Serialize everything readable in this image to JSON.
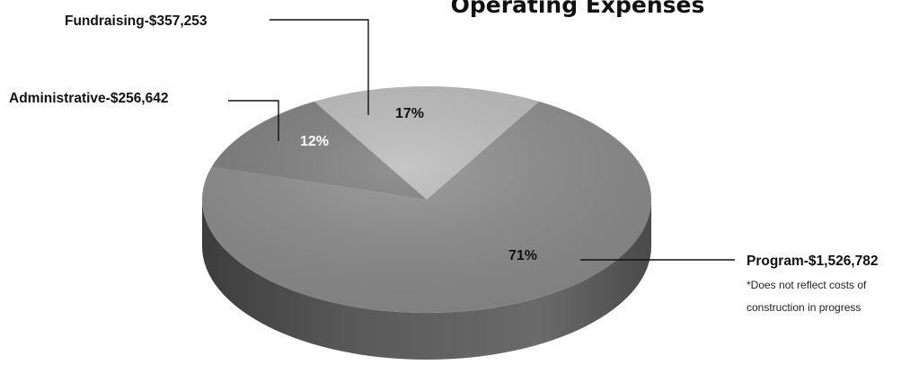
{
  "chart_data": {
    "type": "pie",
    "title": "Operating Expenses",
    "slices": [
      {
        "category": "Program",
        "value": 1526782,
        "label": "Program-$1,526,782",
        "percent_label": "71%",
        "color": "#8a8a8a",
        "side_color": "#5c5c5c"
      },
      {
        "category": "Administrative",
        "value": 256642,
        "label": "Administrative-$256,642",
        "percent_label": "12%",
        "color": "#7b7b7b",
        "side_color": "#555555"
      },
      {
        "category": "Fundraising",
        "value": 357253,
        "label": "Fundraising-$357,253",
        "percent_label": "17%",
        "color": "#b9b9b9",
        "side_color": "#8a8a8a"
      }
    ],
    "note": [
      "*Does not reflect costs of",
      "construction in progress"
    ]
  }
}
